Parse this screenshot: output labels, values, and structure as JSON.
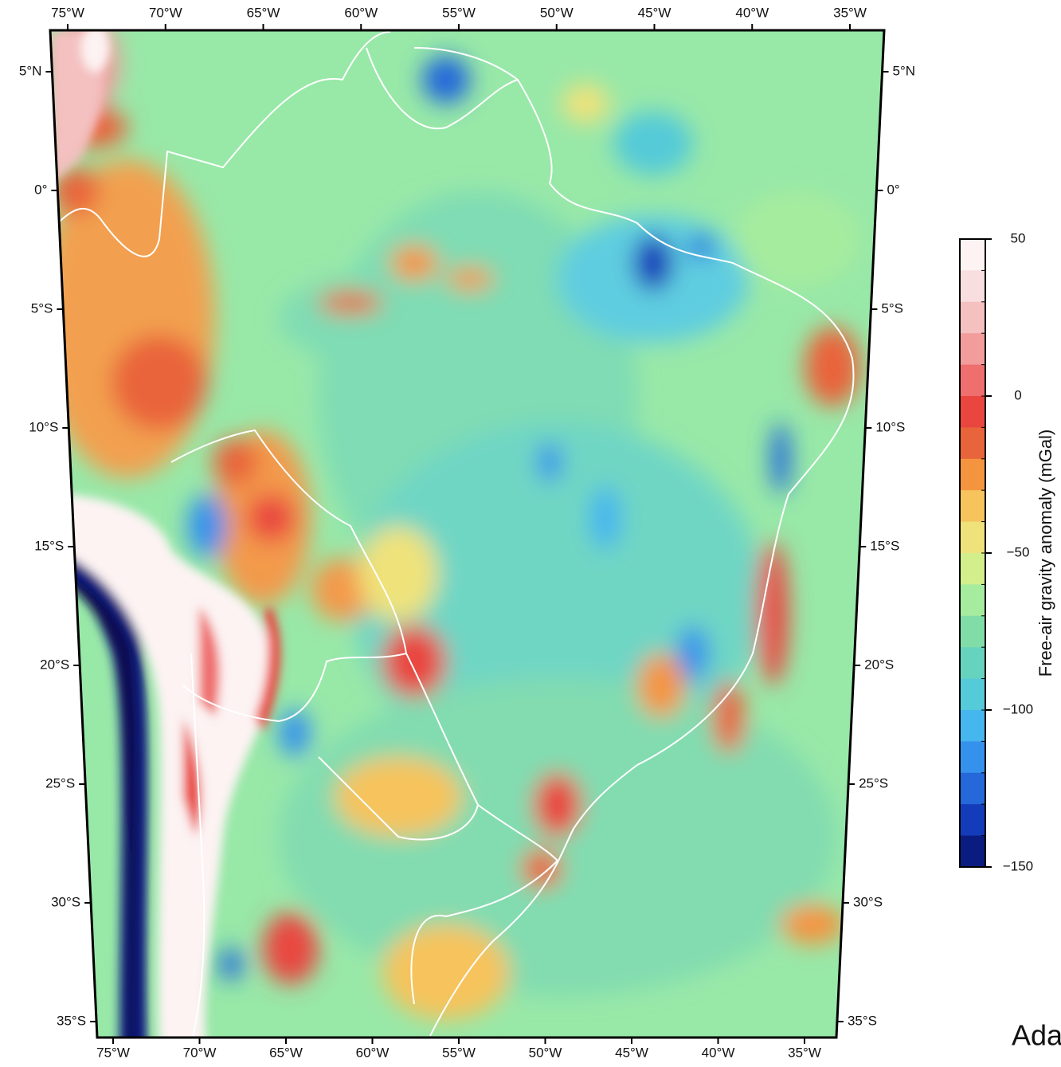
{
  "map": {
    "lon_ticks": [
      {
        "value": -75,
        "label": "75°W"
      },
      {
        "value": -70,
        "label": "70°W"
      },
      {
        "value": -65,
        "label": "65°W"
      },
      {
        "value": -60,
        "label": "60°W"
      },
      {
        "value": -55,
        "label": "55°W"
      },
      {
        "value": -50,
        "label": "50°W"
      },
      {
        "value": -45,
        "label": "45°W"
      },
      {
        "value": -40,
        "label": "40°W"
      },
      {
        "value": -35,
        "label": "35°W"
      }
    ],
    "lat_ticks": [
      {
        "value": 5,
        "label": "5°N"
      },
      {
        "value": 0,
        "label": "0°"
      },
      {
        "value": -5,
        "label": "5°S"
      },
      {
        "value": -10,
        "label": "10°S"
      },
      {
        "value": -15,
        "label": "15°S"
      },
      {
        "value": -20,
        "label": "20°S"
      },
      {
        "value": -25,
        "label": "25°S"
      },
      {
        "value": -30,
        "label": "30°S"
      },
      {
        "value": -35,
        "label": "35°S"
      }
    ]
  },
  "colorbar": {
    "label": "Free-air gravity anomaly (mGal)",
    "lim": [
      -150,
      50
    ],
    "ticks": [
      50,
      0,
      {
        "value": -50,
        "label": "−50"
      },
      {
        "value": -100,
        "label": "−100"
      },
      {
        "value": -150,
        "label": "−150"
      }
    ],
    "colors": [
      "#fdf3f3",
      "#f8dede",
      "#f4c0c0",
      "#f29c9c",
      "#ef6e6e",
      "#e9463f",
      "#e8643a",
      "#f5943f",
      "#f6c35c",
      "#efe27a",
      "#d2ef8c",
      "#a6ec9e",
      "#80dda8",
      "#66d3bf",
      "#55cad8",
      "#45b6ee",
      "#3592ec",
      "#2468da",
      "#143cba",
      "#0a1c80"
    ]
  },
  "footer_text": "Ada"
}
